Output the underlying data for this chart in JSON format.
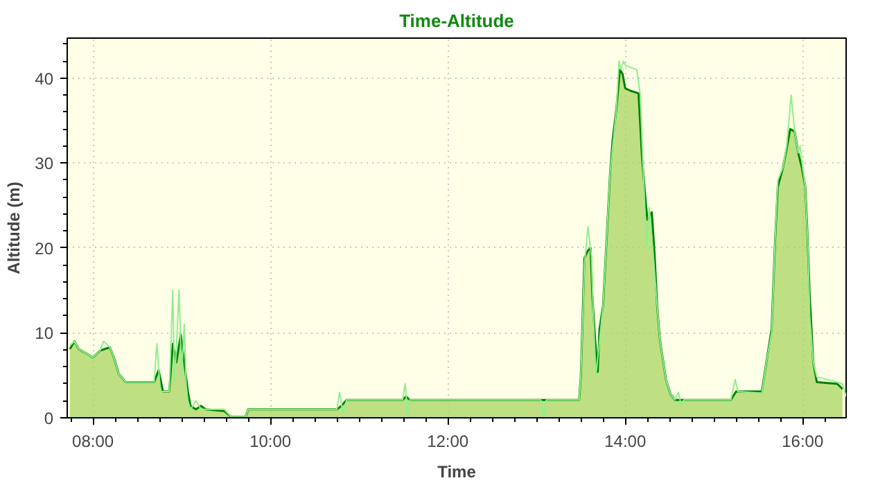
{
  "chart_data": {
    "type": "area",
    "title": "Time-Altitude",
    "xlabel": "Time",
    "ylabel": "Altitude (m)",
    "xlim": [
      7.71,
      16.49
    ],
    "ylim": [
      0,
      44.7
    ],
    "xticks": [
      {
        "value": 8,
        "label": "08:00"
      },
      {
        "value": 10,
        "label": "10:00"
      },
      {
        "value": 12,
        "label": "12:00"
      },
      {
        "value": 14,
        "label": "14:00"
      },
      {
        "value": 16,
        "label": "16:00"
      }
    ],
    "yticks": [
      0,
      10,
      20,
      30,
      40
    ],
    "grid": true,
    "line_style": "solid",
    "series": [
      {
        "color": "#008000",
        "x": [
          7.74,
          7.79,
          7.84,
          7.92,
          8.0,
          8.08,
          8.19,
          8.24,
          8.29,
          8.37,
          8.69,
          8.74,
          8.79,
          8.86,
          8.9,
          8.94,
          8.99,
          9.03,
          9.07,
          9.1,
          9.16,
          9.22,
          9.27,
          9.48,
          9.56,
          9.72,
          9.75,
          10.75,
          10.8,
          10.86,
          11.49,
          11.53,
          11.57,
          13.48,
          13.5,
          13.54,
          13.58,
          13.61,
          13.63,
          13.66,
          13.69,
          13.71,
          13.75,
          13.79,
          13.83,
          13.86,
          13.9,
          13.94,
          13.97,
          14.0,
          14.06,
          14.15,
          14.19,
          14.22,
          14.25,
          14.3,
          14.33,
          14.36,
          14.39,
          14.43,
          14.46,
          14.51,
          14.56,
          15.19,
          15.25,
          15.54,
          15.59,
          15.65,
          15.69,
          15.72,
          15.78,
          15.82,
          15.86,
          15.91,
          15.95,
          15.99,
          16.03,
          16.05,
          16.08,
          16.12,
          16.16,
          16.39,
          16.45
        ],
        "values": [
          8.1,
          9,
          8.1,
          7.6,
          7.1,
          7.9,
          8.3,
          7,
          5.2,
          4.2,
          4.2,
          5.6,
          3.1,
          3.1,
          8.7,
          6.5,
          9.8,
          6.5,
          3.1,
          1.4,
          1,
          1.4,
          1,
          0.8,
          0.1,
          0.1,
          1,
          1,
          1.4,
          2.1,
          2.1,
          2.5,
          2.1,
          2.1,
          4.9,
          18.8,
          19.7,
          20,
          14.3,
          9.3,
          5.4,
          10.4,
          13.2,
          21,
          28.9,
          32.9,
          36.3,
          41,
          40.5,
          38.8,
          38.5,
          38.2,
          30.6,
          26.7,
          23.3,
          24.2,
          19.4,
          13.2,
          9.3,
          6.5,
          4.5,
          2.8,
          2.1,
          2.1,
          3.1,
          3.1,
          6.5,
          10.4,
          21,
          27.2,
          29.5,
          31.7,
          34,
          33.7,
          31.2,
          29.5,
          27.2,
          22.7,
          14.3,
          6.5,
          4.2,
          4,
          3.4
        ]
      },
      {
        "type": "line",
        "color": "#90ee90",
        "x": [
          7.74,
          7.79,
          7.84,
          7.92,
          8.0,
          8.08,
          8.12,
          8.19,
          8.24,
          8.29,
          8.37,
          8.69,
          8.72,
          8.76,
          8.79,
          8.86,
          8.9,
          8.92,
          8.94,
          8.97,
          9.0,
          9.03,
          9.05,
          9.07,
          9.1,
          9.16,
          9.22,
          9.27,
          9.48,
          9.56,
          9.72,
          9.75,
          10.75,
          10.78,
          10.82,
          10.86,
          11.49,
          11.52,
          11.55,
          11.57,
          13.05,
          13.08,
          13.11,
          13.48,
          13.5,
          13.54,
          13.58,
          13.62,
          13.64,
          13.67,
          13.71,
          13.75,
          13.79,
          13.83,
          13.86,
          13.9,
          13.93,
          13.95,
          13.98,
          14.0,
          14.13,
          14.17,
          14.2,
          14.24,
          14.27,
          14.31,
          14.36,
          14.39,
          14.43,
          14.46,
          14.51,
          14.56,
          14.6,
          14.63,
          14.66,
          15.19,
          15.24,
          15.27,
          15.54,
          15.59,
          15.65,
          15.69,
          15.72,
          15.78,
          15.82,
          15.87,
          15.91,
          15.95,
          15.97,
          16.0,
          16.03,
          16.06,
          16.08,
          16.12,
          16.16,
          16.35,
          16.45,
          16.49
        ],
        "values": [
          8.5,
          9,
          8.1,
          7.6,
          7.1,
          7.9,
          9,
          8.3,
          7,
          5.2,
          4.2,
          4.2,
          8.7,
          3.1,
          3.1,
          3.1,
          15,
          4.4,
          8,
          15,
          5,
          11,
          4,
          2,
          1,
          2,
          1,
          1,
          1,
          0.1,
          0.1,
          1,
          1,
          3,
          0.5,
          2.1,
          2.1,
          4,
          0,
          2.1,
          2.1,
          0,
          2.1,
          2.1,
          4.9,
          18,
          22.5,
          19,
          12,
          5,
          9,
          13.2,
          21,
          28.9,
          32,
          36.3,
          42,
          41,
          42,
          41.5,
          41,
          38,
          30,
          20,
          24.8,
          20,
          13.2,
          9.3,
          6.5,
          4.5,
          2.8,
          2.1,
          3,
          1.5,
          2.1,
          2.1,
          4.5,
          3.1,
          2.9,
          6.5,
          10,
          21,
          28,
          29.5,
          32,
          38,
          33.7,
          31.2,
          32,
          29.5,
          27.2,
          20,
          12,
          6.5,
          4.8,
          4.3,
          4,
          2.5
        ]
      }
    ]
  }
}
